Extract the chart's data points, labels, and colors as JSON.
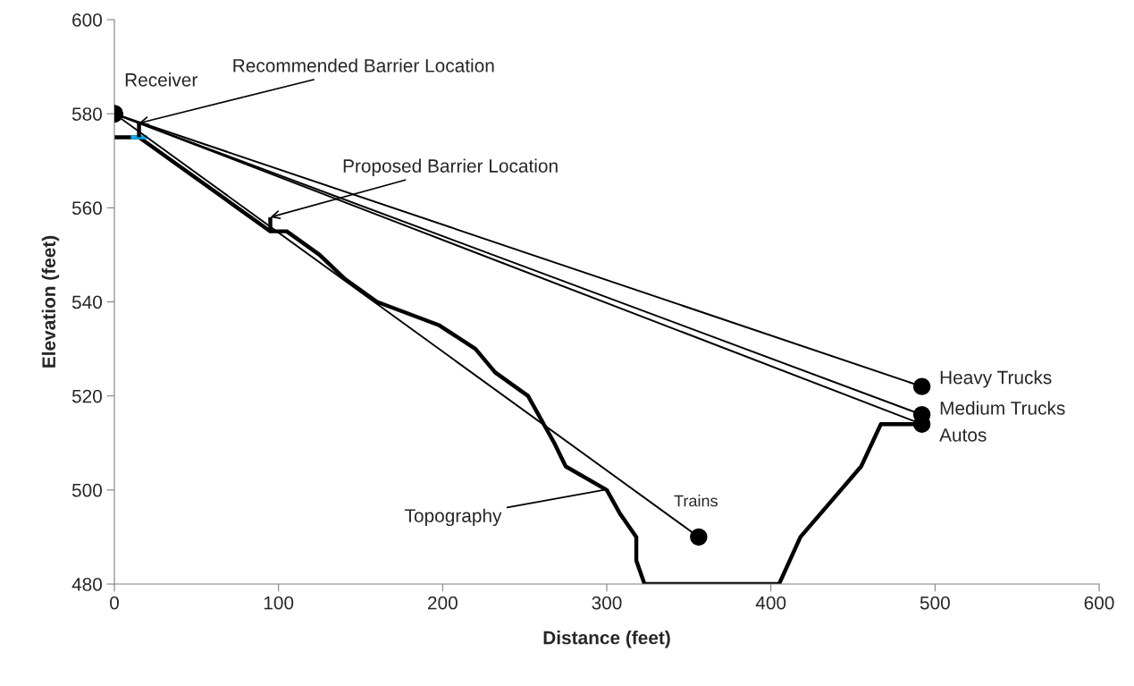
{
  "chart_data": {
    "type": "line",
    "xlabel": "Distance (feet)",
    "ylabel": "Elevation (feet)",
    "xlim": [
      0,
      600
    ],
    "xticks": [
      0,
      100,
      200,
      300,
      400,
      500,
      600
    ],
    "ylim": [
      480,
      600
    ],
    "yticks": [
      480,
      500,
      520,
      540,
      560,
      580,
      600
    ],
    "grid": false,
    "legend": false,
    "series": [
      {
        "color": "#000000",
        "x": [
          0,
          15,
          95,
          105,
          125,
          140,
          160,
          198,
          220,
          232,
          252,
          268,
          275,
          300,
          308,
          318,
          318,
          323,
          405,
          418,
          455,
          467,
          492
        ],
        "values": [
          575,
          575,
          555,
          555,
          550,
          545,
          540,
          535,
          530,
          525,
          520,
          510,
          505,
          500,
          495,
          490,
          485,
          480,
          480,
          490,
          505,
          514,
          514
        ]
      },
      {
        "color": "#00b0f0",
        "x": [
          10,
          20
        ],
        "values": [
          575,
          575
        ]
      },
      {
        "color": "#000000",
        "x": [
          15,
          15
        ],
        "values": [
          575,
          578
        ]
      },
      {
        "color": "#000000",
        "x": [
          95,
          95
        ],
        "values": [
          555,
          558
        ]
      },
      {
        "name": "Heavy Trucks",
        "color": "#000000",
        "marker": "circle",
        "x": [
          0,
          492
        ],
        "values": [
          580,
          522
        ]
      },
      {
        "name": "Medium Trucks",
        "color": "#000000",
        "marker": "circle",
        "x": [
          0,
          492
        ],
        "values": [
          580,
          516
        ]
      },
      {
        "name": "Autos",
        "color": "#000000",
        "marker": "circle",
        "x": [
          0,
          492
        ],
        "values": [
          580,
          514
        ]
      },
      {
        "name": "Trains",
        "color": "#000000",
        "marker": "circle",
        "x": [
          0,
          356
        ],
        "values": [
          580,
          490
        ]
      }
    ],
    "annotations": [
      {
        "text": "Receiver",
        "x": 0,
        "y": 580
      },
      {
        "text": "Recommended Barrier Location",
        "x": 15,
        "y": 578
      },
      {
        "text": "Proposed Barrier Location",
        "x": 95,
        "y": 558
      },
      {
        "text": "Topography",
        "x": 298,
        "y": 500
      }
    ]
  }
}
